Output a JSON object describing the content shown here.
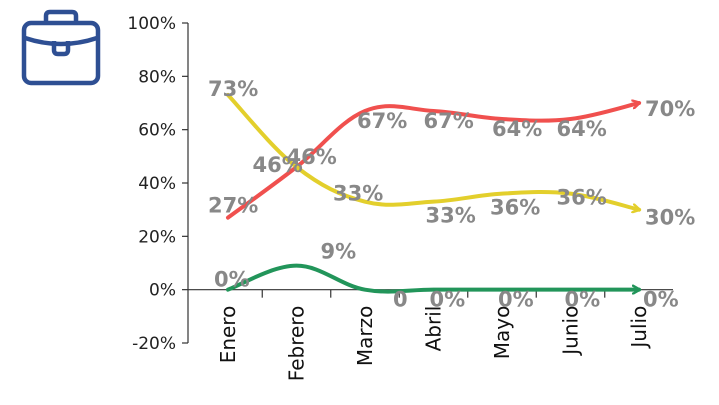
{
  "chart_data": {
    "type": "line",
    "categories": [
      "Enero",
      "Febrero",
      "Marzo",
      "Abril",
      "Mayo",
      "Junio",
      "Julio"
    ],
    "ylim": [
      -20,
      100
    ],
    "yticks": [
      -20,
      0,
      20,
      40,
      60,
      80,
      100
    ],
    "ytick_labels": [
      "-20%",
      "0%",
      "20%",
      "40%",
      "60%",
      "80%",
      "100%"
    ],
    "grid": false,
    "series": [
      {
        "color": "#f0504e",
        "values": [
          27,
          46,
          67,
          67,
          64,
          64,
          70
        ],
        "labels": [
          "27%",
          "46%",
          "67%",
          "67%",
          "64%",
          "64%",
          "70%"
        ]
      },
      {
        "color": "#e3cf2c",
        "values": [
          73,
          46,
          33,
          33,
          36,
          36,
          30
        ],
        "labels": [
          "73%",
          "46%",
          "33%",
          "33%",
          "36%",
          "36%",
          "30%"
        ]
      },
      {
        "color": "#22955a",
        "values": [
          0,
          9,
          0,
          0,
          0,
          0,
          0
        ],
        "labels": [
          "0%",
          "9%",
          "0",
          "0%",
          "0%",
          "0%",
          "0%"
        ]
      }
    ]
  },
  "icon": {
    "name": "briefcase-icon",
    "color": "#2e4f93"
  }
}
